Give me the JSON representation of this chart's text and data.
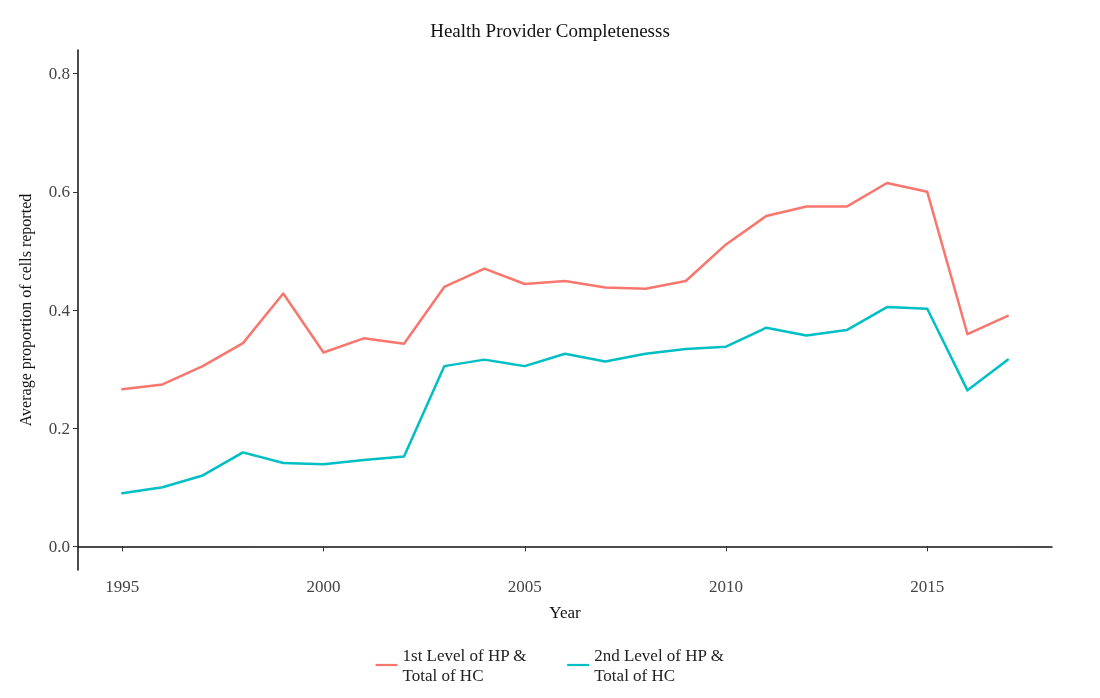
{
  "chart_data": {
    "type": "line",
    "title": "Health Provider Completenesss",
    "xlabel": "Year",
    "ylabel": "Average proportion of cells reported",
    "x": [
      1995,
      1996,
      1997,
      1998,
      1999,
      2000,
      2001,
      2002,
      2003,
      2004,
      2005,
      2006,
      2007,
      2008,
      2009,
      2010,
      2011,
      2012,
      2013,
      2014,
      2015,
      2016,
      2017
    ],
    "series": [
      {
        "name": "1st Level of HP &\nTotal of HC",
        "color": "#f8766d",
        "values": [
          0.266,
          0.274,
          0.305,
          0.344,
          0.428,
          0.328,
          0.352,
          0.343,
          0.439,
          0.47,
          0.444,
          0.449,
          0.438,
          0.436,
          0.449,
          0.511,
          0.559,
          0.575,
          0.575,
          0.615,
          0.6,
          0.359,
          0.39
        ]
      },
      {
        "name": "2nd Level of HP &\nTotal of HC",
        "color": "#00bfc4",
        "values": [
          0.09,
          0.1,
          0.12,
          0.159,
          0.141,
          0.139,
          0.146,
          0.152,
          0.305,
          0.316,
          0.305,
          0.326,
          0.313,
          0.326,
          0.334,
          0.338,
          0.37,
          0.357,
          0.366,
          0.405,
          0.402,
          0.264,
          0.316
        ]
      }
    ],
    "xlim": [
      1993.9,
      2018.1
    ],
    "xticks": [
      1995,
      2000,
      2005,
      2010,
      2015
    ],
    "ylim": [
      -0.04,
      0.84
    ],
    "yticks": [
      {
        "value": 0,
        "label": "0.0"
      },
      {
        "value": 0.2,
        "label": "0.2"
      },
      {
        "value": 0.4,
        "label": "0.4"
      },
      {
        "value": 0.6,
        "label": "0.6"
      },
      {
        "value": 0.8,
        "label": "0.8"
      }
    ],
    "grid": false,
    "legend": "bottom",
    "marker": "none",
    "line_style": "solid"
  }
}
